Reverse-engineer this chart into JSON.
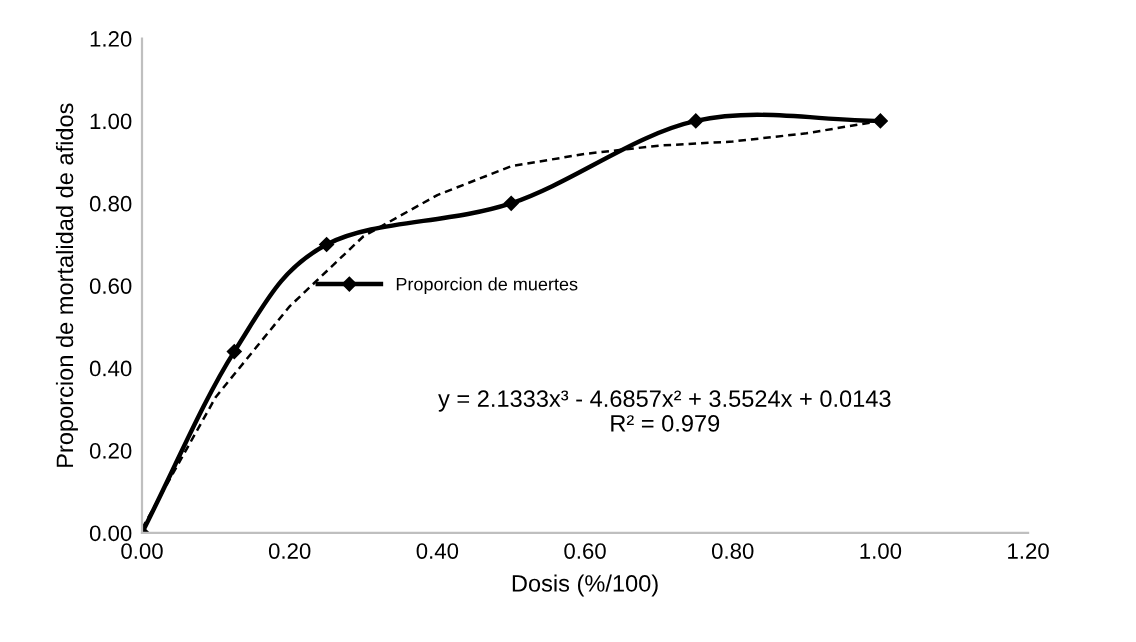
{
  "chart_data": {
    "type": "line",
    "xlabel": "Dosis (%/100)",
    "ylabel": "Proporcion de mortalidad de afidos",
    "xlim": [
      0,
      1.2
    ],
    "ylim": [
      0,
      1.2
    ],
    "xticks": [
      {
        "value": 0,
        "label": "0.00"
      },
      {
        "value": 0.2,
        "label": "0.20"
      },
      {
        "value": 0.4,
        "label": "0.40"
      },
      {
        "value": 0.6,
        "label": "0.60"
      },
      {
        "value": 0.8,
        "label": "0.80"
      },
      {
        "value": 1.0,
        "label": "1.00"
      },
      {
        "value": 1.2,
        "label": "1.20"
      }
    ],
    "yticks": [
      {
        "value": 0,
        "label": "0.00"
      },
      {
        "value": 0.2,
        "label": "0.20"
      },
      {
        "value": 0.4,
        "label": "0.40"
      },
      {
        "value": 0.6,
        "label": "0.60"
      },
      {
        "value": 0.8,
        "label": "0.80"
      },
      {
        "value": 1.0,
        "label": "1.00"
      },
      {
        "value": 1.2,
        "label": "1.20"
      }
    ],
    "grid": false,
    "legend": "center",
    "series": [
      {
        "name": "Proporcion de muertes",
        "color": "#000000",
        "marker": "diamond",
        "line_style": "solid",
        "x": [
          0,
          0.125,
          0.25,
          0.5,
          0.75,
          1.0
        ],
        "values": [
          0,
          0.44,
          0.7,
          0.8,
          1.0,
          1.0
        ]
      },
      {
        "color": "#000000",
        "marker": "none",
        "line_style": "dashed",
        "x": [
          0,
          0.1,
          0.2,
          0.3,
          0.4,
          0.5,
          0.6,
          0.7,
          0.8,
          0.9,
          1.0
        ],
        "values": [
          0.01,
          0.33,
          0.55,
          0.72,
          0.82,
          0.89,
          0.92,
          0.94,
          0.95,
          0.97,
          1.0
        ]
      }
    ],
    "annotations": [
      "y = 2.1333x³ - 4.6857x² + 3.5524x + 0.0143",
      "R² = 0.979"
    ]
  }
}
